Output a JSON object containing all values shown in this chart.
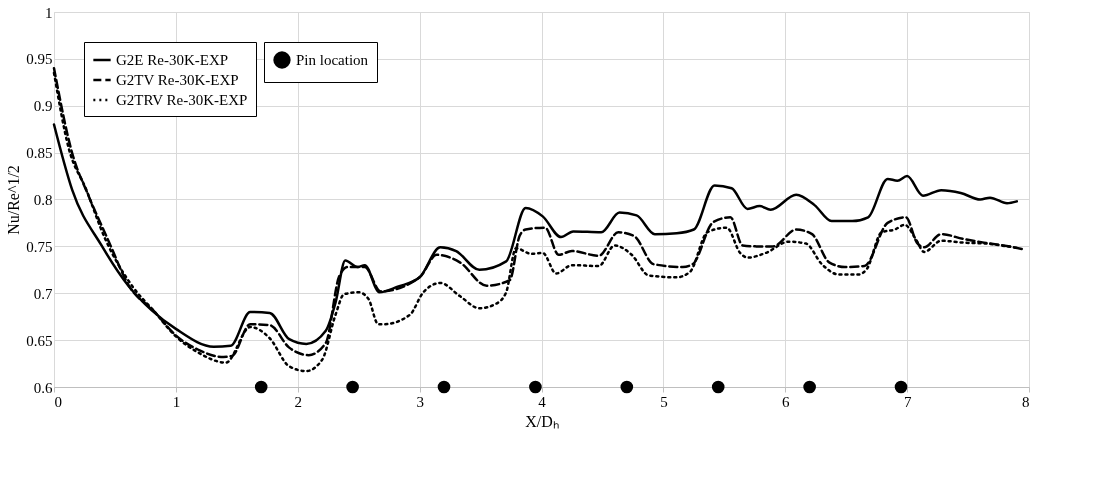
{
  "chart_data": {
    "type": "line",
    "xlabel": "X/Dₕ",
    "ylabel": "Nu/Re^1/2",
    "xlim": [
      0,
      8
    ],
    "xticks": [
      0,
      1,
      2,
      3,
      4,
      5,
      6,
      7,
      8
    ],
    "ylim": [
      0.6,
      1
    ],
    "yticks": [
      0.6,
      0.65,
      0.7,
      0.75,
      0.8,
      0.85,
      0.9,
      0.95,
      1
    ],
    "grid": true,
    "legend": "top left",
    "series": [
      {
        "name": "G2E Re-30K-EXP",
        "color": "#000000",
        "line_style": "solid",
        "x": [
          0,
          0.15,
          0.39,
          0.61,
          0.8,
          1.0,
          1.31,
          1.45,
          1.61,
          1.77,
          1.93,
          2.07,
          2.23,
          2.31,
          2.39,
          2.49,
          2.55,
          2.67,
          2.82,
          3.0,
          3.17,
          3.3,
          3.49,
          3.71,
          3.87,
          4.01,
          4.16,
          4.26,
          4.49,
          4.64,
          4.78,
          4.93,
          5.11,
          5.25,
          5.42,
          5.56,
          5.69,
          5.79,
          5.88,
          6.09,
          6.24,
          6.38,
          6.55,
          6.68,
          6.84,
          6.92,
          7.0,
          7.13,
          7.28,
          7.44,
          7.6,
          7.68,
          7.82,
          7.9
        ],
        "values": [
          0.88,
          0.81,
          0.751,
          0.708,
          0.682,
          0.662,
          0.643,
          0.644,
          0.68,
          0.679,
          0.651,
          0.646,
          0.66,
          0.69,
          0.735,
          0.728,
          0.73,
          0.701,
          0.707,
          0.717,
          0.749,
          0.745,
          0.725,
          0.734,
          0.791,
          0.782,
          0.76,
          0.766,
          0.765,
          0.786,
          0.783,
          0.763,
          0.764,
          0.768,
          0.815,
          0.812,
          0.79,
          0.793,
          0.789,
          0.805,
          0.794,
          0.777,
          0.777,
          0.781,
          0.822,
          0.82,
          0.825,
          0.804,
          0.81,
          0.807,
          0.8,
          0.802,
          0.796,
          0.798
        ]
      },
      {
        "name": "G2TV Re-30K-EXP",
        "color": "#000000",
        "line_style": "dashed",
        "x": [
          0,
          0.15,
          0.28,
          0.45,
          0.61,
          0.82,
          1.0,
          1.18,
          1.39,
          1.46,
          1.61,
          1.77,
          1.93,
          2.09,
          2.23,
          2.34,
          2.41,
          2.55,
          2.68,
          3.0,
          3.14,
          3.33,
          3.55,
          3.74,
          3.82,
          3.87,
          4.03,
          4.14,
          4.25,
          4.47,
          4.63,
          4.76,
          4.92,
          5.16,
          5.24,
          5.41,
          5.55,
          5.65,
          5.76,
          5.9,
          6.09,
          6.22,
          6.36,
          6.49,
          6.65,
          6.84,
          6.99,
          7.08,
          7.14,
          7.28,
          7.46,
          7.63,
          7.79,
          7.95
        ],
        "values": [
          0.94,
          0.849,
          0.805,
          0.755,
          0.709,
          0.681,
          0.655,
          0.64,
          0.632,
          0.633,
          0.667,
          0.666,
          0.642,
          0.634,
          0.647,
          0.718,
          0.728,
          0.728,
          0.702,
          0.717,
          0.741,
          0.733,
          0.708,
          0.714,
          0.761,
          0.768,
          0.77,
          0.741,
          0.745,
          0.74,
          0.765,
          0.761,
          0.731,
          0.728,
          0.731,
          0.776,
          0.781,
          0.751,
          0.75,
          0.75,
          0.768,
          0.763,
          0.733,
          0.728,
          0.729,
          0.775,
          0.781,
          0.754,
          0.749,
          0.763,
          0.758,
          0.754,
          0.751,
          0.747
        ]
      },
      {
        "name": "G2TRV Re-30K-EXP",
        "color": "#000000",
        "line_style": "dotted",
        "x": [
          0,
          0.12,
          0.26,
          0.42,
          0.64,
          0.82,
          1.0,
          1.18,
          1.41,
          1.61,
          1.77,
          1.93,
          2.07,
          2.2,
          2.31,
          2.38,
          2.5,
          2.58,
          2.66,
          2.71,
          2.92,
          3.03,
          3.17,
          3.33,
          3.49,
          3.63,
          3.71,
          3.79,
          3.92,
          4.01,
          4.12,
          4.25,
          4.47,
          4.6,
          4.74,
          4.88,
          5.11,
          5.22,
          5.36,
          5.52,
          5.63,
          5.69,
          5.84,
          6.03,
          6.17,
          6.3,
          6.44,
          6.6,
          6.67,
          6.79,
          6.9,
          6.98,
          7.07,
          7.14,
          7.28,
          7.46,
          7.65,
          7.82,
          7.92
        ],
        "values": [
          0.935,
          0.855,
          0.812,
          0.758,
          0.708,
          0.681,
          0.654,
          0.637,
          0.626,
          0.664,
          0.652,
          0.622,
          0.617,
          0.629,
          0.677,
          0.699,
          0.701,
          0.694,
          0.667,
          0.667,
          0.677,
          0.701,
          0.711,
          0.697,
          0.684,
          0.689,
          0.701,
          0.748,
          0.742,
          0.743,
          0.721,
          0.73,
          0.729,
          0.751,
          0.741,
          0.719,
          0.717,
          0.723,
          0.765,
          0.77,
          0.743,
          0.738,
          0.743,
          0.755,
          0.753,
          0.731,
          0.72,
          0.72,
          0.726,
          0.765,
          0.768,
          0.773,
          0.758,
          0.744,
          0.756,
          0.754,
          0.753,
          0.75,
          0.748
        ]
      },
      {
        "name": "Pin location",
        "type": "scatter",
        "marker": "circle",
        "color": "#000000",
        "x": [
          1.7,
          2.45,
          3.2,
          3.95,
          4.7,
          5.45,
          6.2,
          6.95
        ],
        "values": [
          0.6,
          0.6,
          0.6,
          0.6,
          0.6,
          0.6,
          0.6,
          0.6
        ]
      }
    ]
  }
}
